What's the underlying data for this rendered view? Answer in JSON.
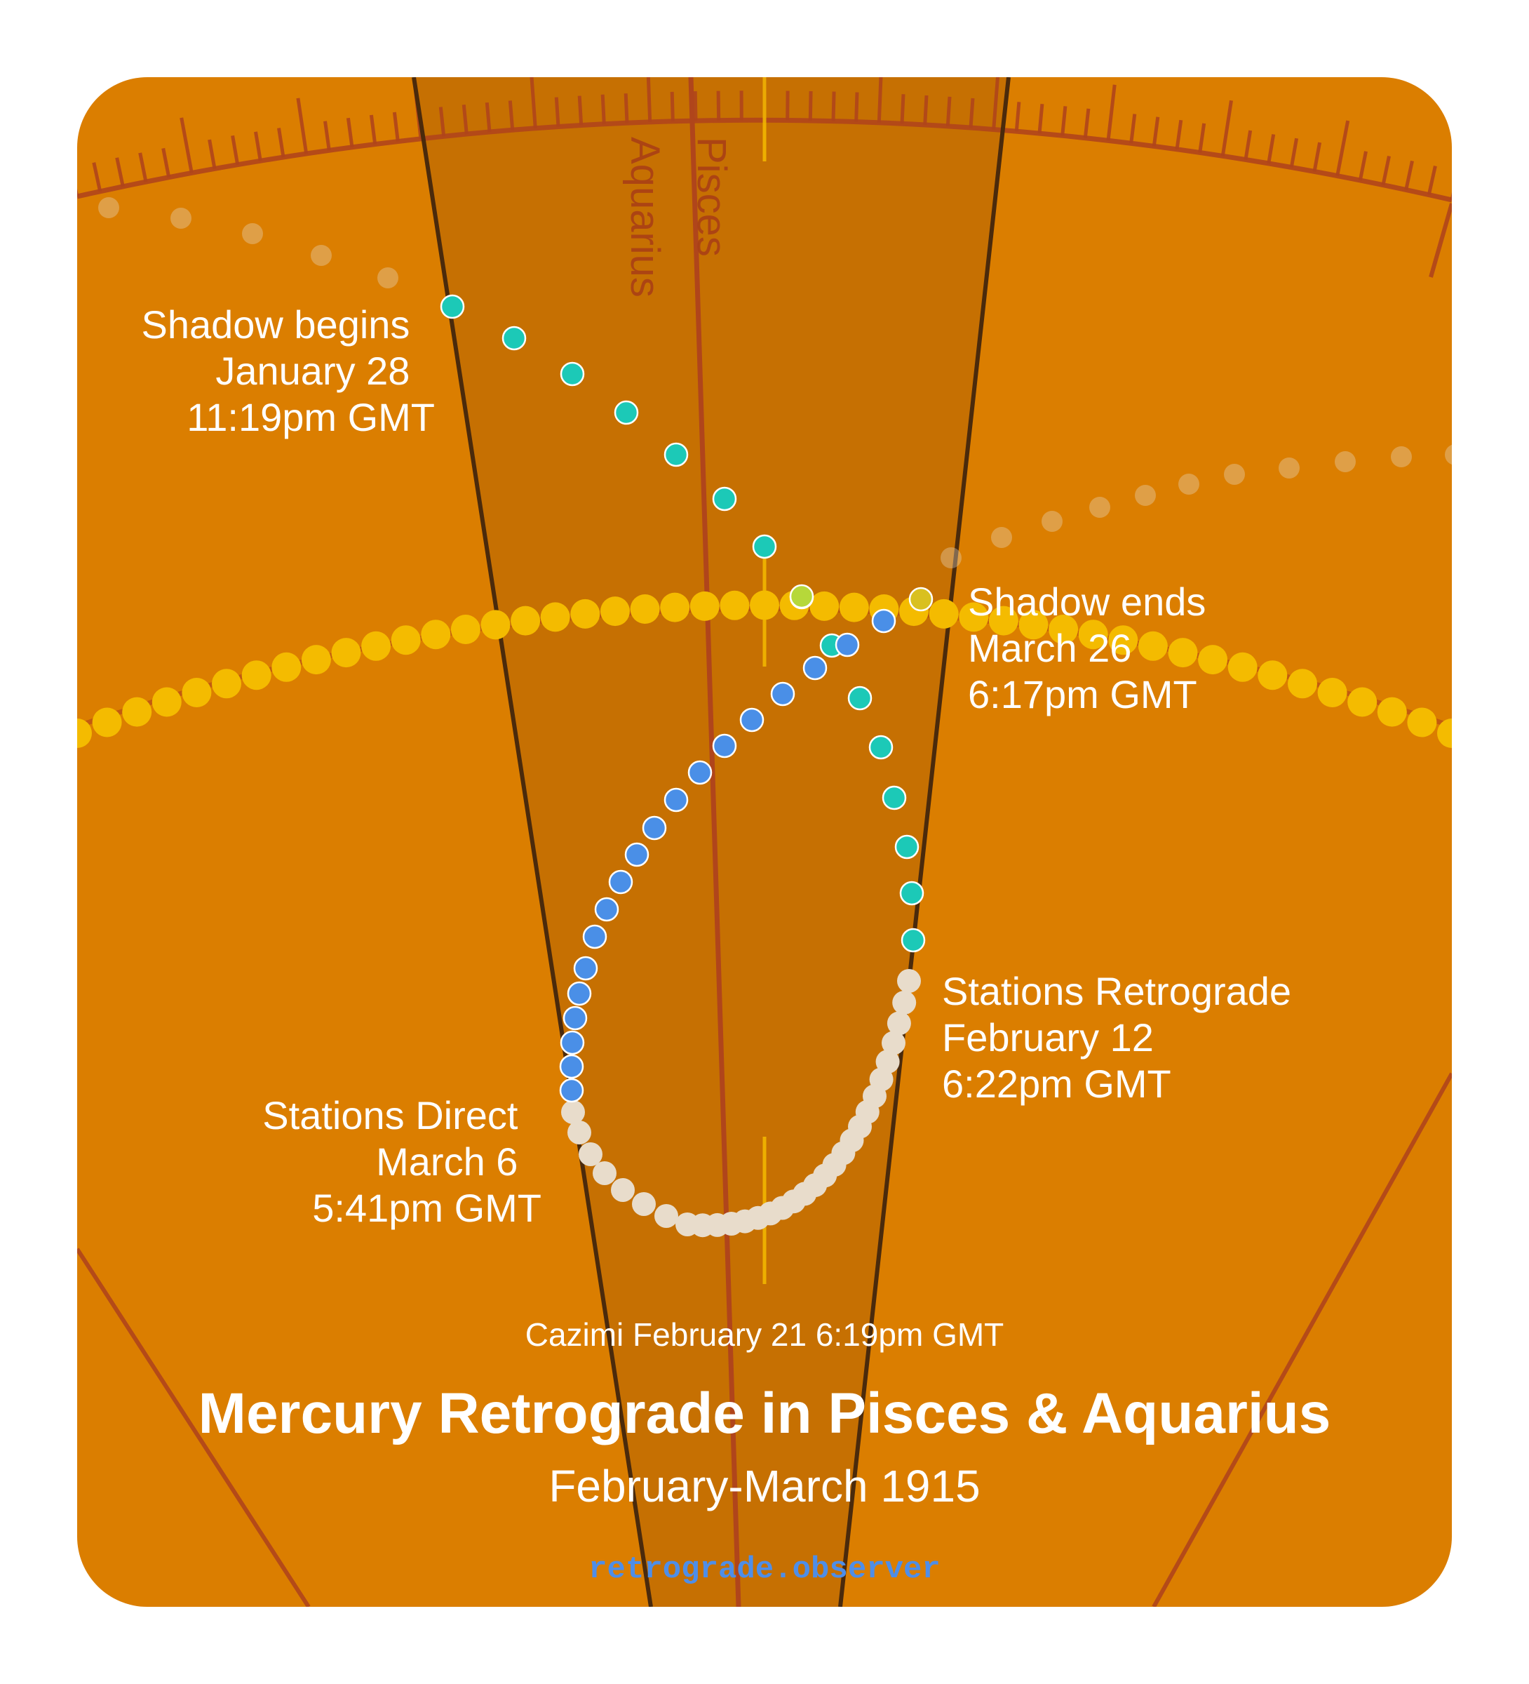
{
  "signs": [
    "Aquarius",
    "Pisces"
  ],
  "events": {
    "shadow_begins": {
      "title": "Shadow begins",
      "date": "January 28",
      "time": "11:19pm GMT"
    },
    "shadow_ends": {
      "title": "Shadow ends",
      "date": "March 26",
      "time": "6:17pm GMT"
    },
    "stations_retrograde": {
      "title": "Stations Retrograde",
      "date": "February 12",
      "time": "6:22pm GMT"
    },
    "stations_direct": {
      "title": "Stations Direct",
      "date": "March 6",
      "time": "5:41pm GMT"
    }
  },
  "cazimi": "Cazimi February 21 6:19pm GMT",
  "title": "Mercury Retrograde in Pisces & Aquarius",
  "subtitle": "February-March 1915",
  "website": "retrograde.observer",
  "colors": {
    "background": "#db7e00",
    "sign_band": "#c67002",
    "boundary_line": "#4a2a0c",
    "ecliptic_line": "#b0451b",
    "sun_path": "#f4bb00",
    "pre_retrograde_shadow": "#1cc9b7",
    "retrograde": "#e8dccb",
    "post_retrograde_shadow": "#4a8fe7",
    "label": "#ffffff",
    "website": "#4e8ee8"
  },
  "icons": {
    "shadow_dot": "teal-circle",
    "retrograde_dot": "cream-circle",
    "direct_dot": "blue-circle",
    "sun_dot": "yellow-circle"
  }
}
